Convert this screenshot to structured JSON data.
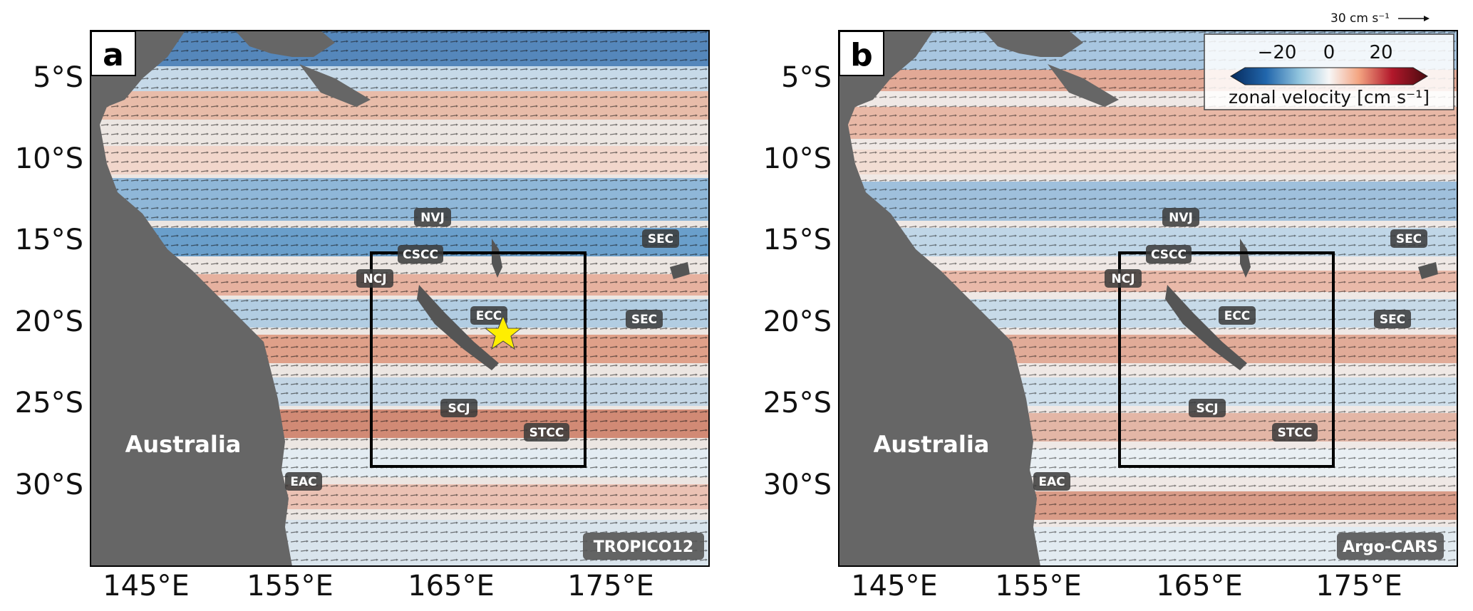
{
  "panels": [
    {
      "id": "a",
      "letter": "a",
      "model": "TROPICO12",
      "has_star": true,
      "regions": [
        "NVJ",
        "SEC",
        "CSCC",
        "NCJ",
        "ECC",
        "SEC",
        "SCJ",
        "STCC",
        "EAC"
      ]
    },
    {
      "id": "b",
      "letter": "b",
      "model": "Argo-CARS",
      "has_star": false,
      "regions": [
        "NVJ",
        "SEC",
        "CSCC",
        "NCJ",
        "ECC",
        "SEC",
        "SCJ",
        "STCC",
        "EAC"
      ]
    }
  ],
  "land_label": "Australia",
  "y_ticks": [
    "5°S",
    "10°S",
    "15°S",
    "20°S",
    "25°S",
    "30°S"
  ],
  "x_ticks": [
    "145°E",
    "155°E",
    "165°E",
    "175°E"
  ],
  "colorbar": {
    "ticks": [
      "−20",
      "0",
      "20"
    ],
    "title": "zonal velocity [cm s⁻¹]"
  },
  "reference_vector": "30 cm s⁻¹",
  "colors": {
    "land": "#666666",
    "negative": "#1a5fa8",
    "positive": "#b03426",
    "box": "#000000",
    "star": "#ffee00"
  }
}
